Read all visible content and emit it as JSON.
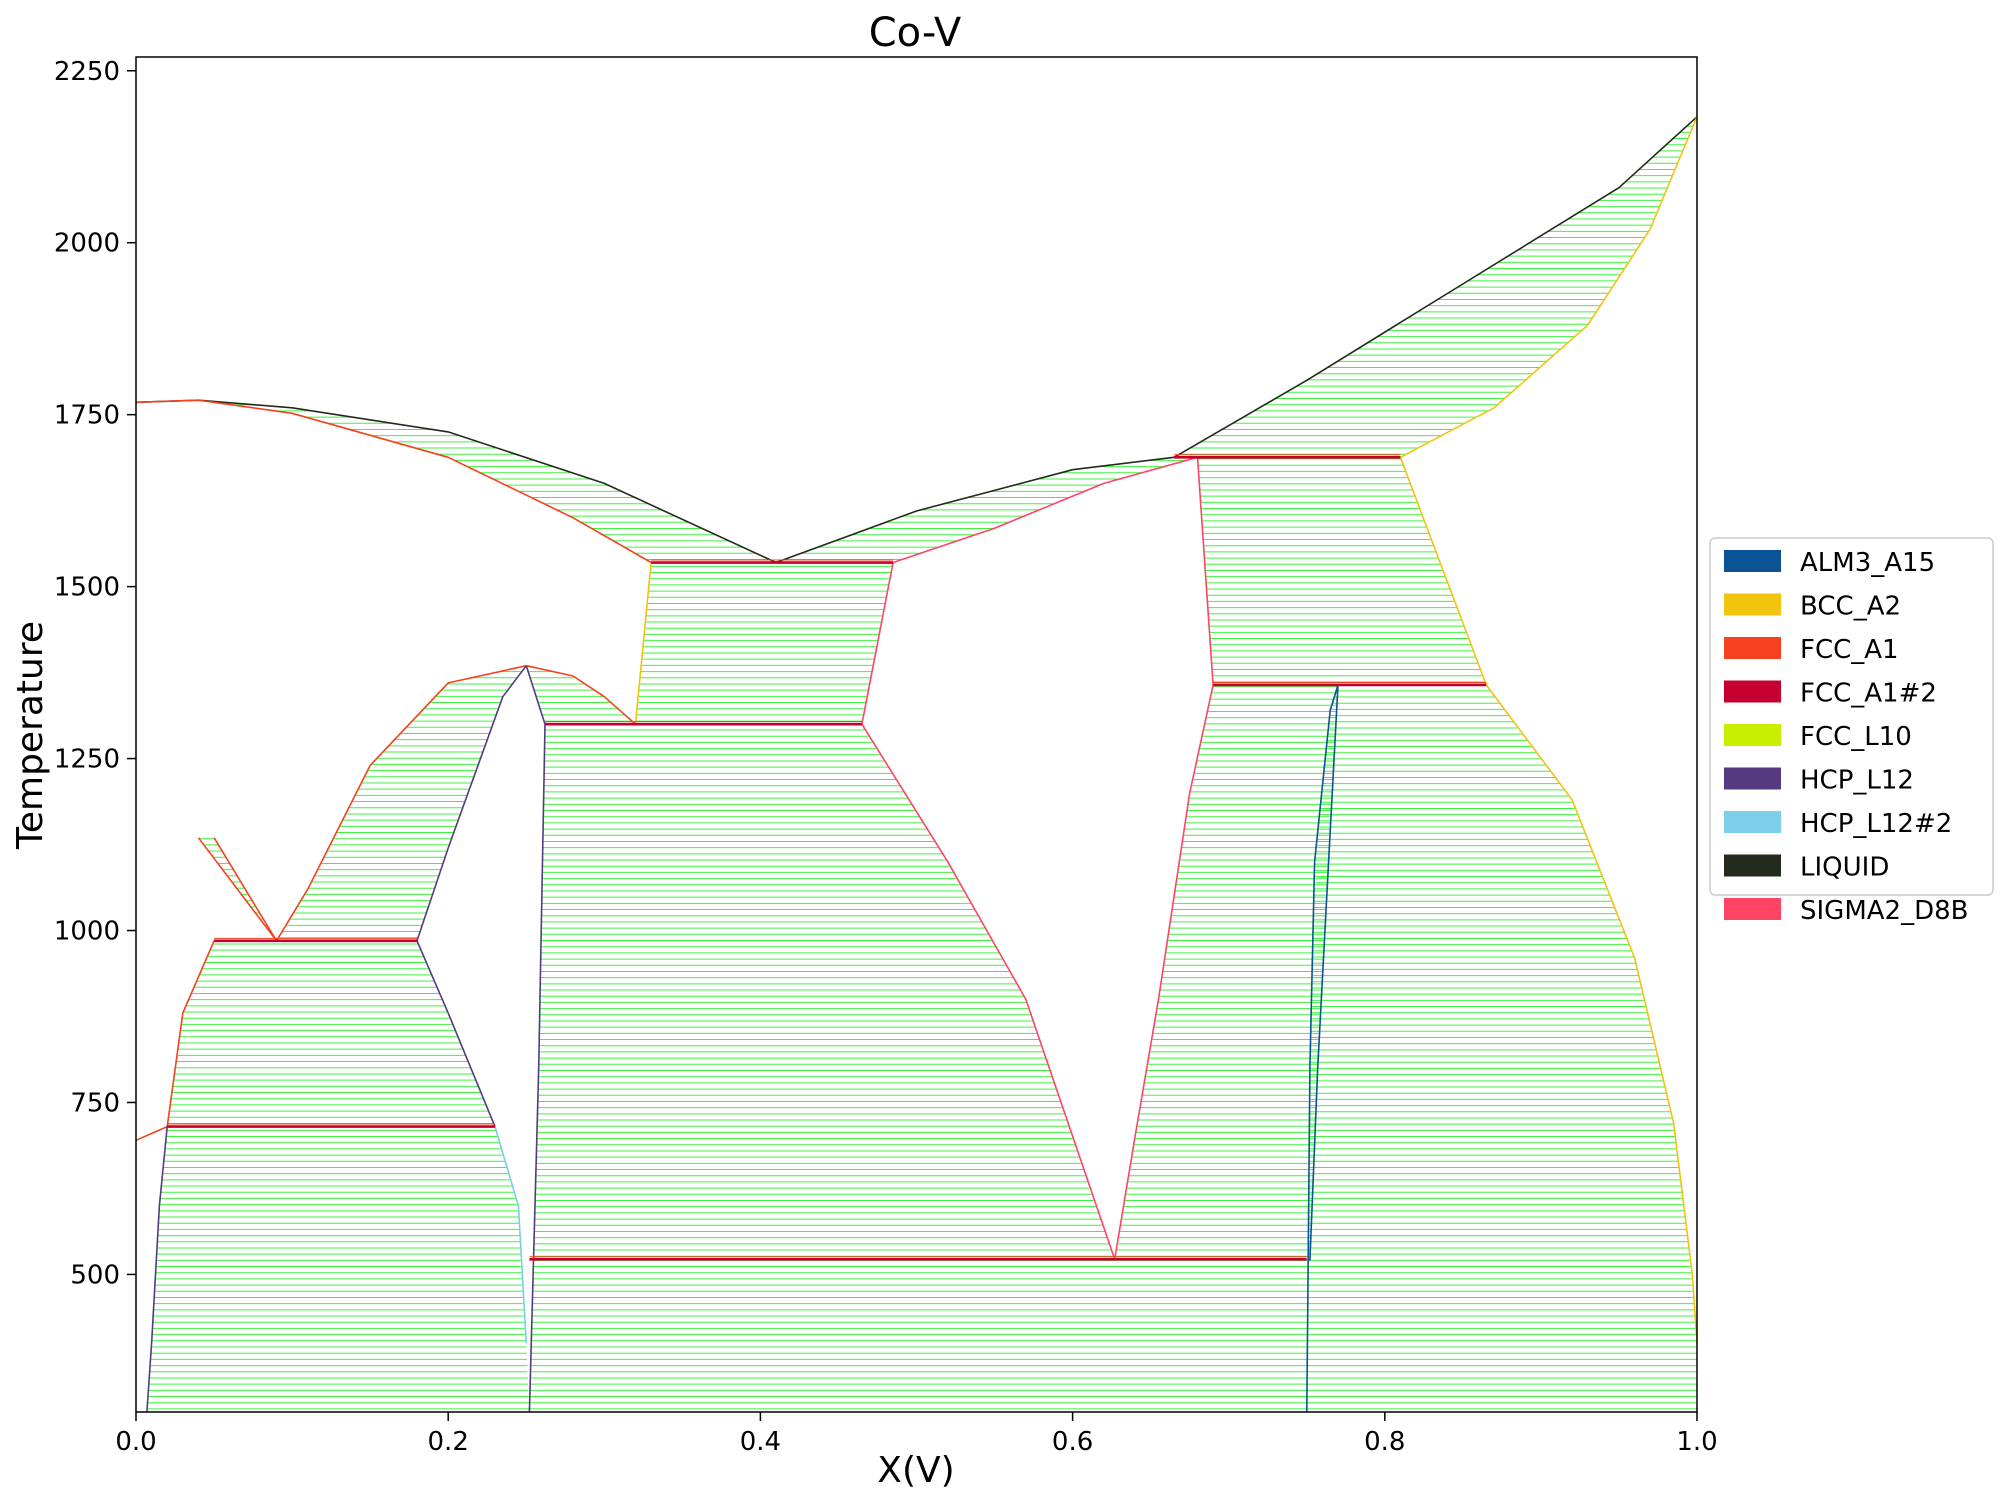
{
  "chart_data": {
    "type": "line",
    "title": "Co-V",
    "xlabel": "X(V)",
    "ylabel": "Temperature",
    "xlim": [
      0,
      1
    ],
    "ylim": [
      300,
      2270
    ],
    "xticks": [
      "0.0",
      "0.2",
      "0.4",
      "0.6",
      "0.8",
      "1.0"
    ],
    "yticks": [
      "500",
      "750",
      "1000",
      "1250",
      "1500",
      "1750",
      "2000",
      "2250"
    ],
    "grid": false,
    "legend_position": "right",
    "tie_line_color": "#00ee00",
    "legend": [
      {
        "name": "ALM3_A15",
        "color": "#0b5394"
      },
      {
        "name": "BCC_A2",
        "color": "#f1c40f"
      },
      {
        "name": "FCC_A1",
        "color": "#f4411e"
      },
      {
        "name": "FCC_A1#2",
        "color": "#c3002f"
      },
      {
        "name": "FCC_L10",
        "color": "#c9ee00"
      },
      {
        "name": "HCP_L12",
        "color": "#553a82"
      },
      {
        "name": "HCP_L12#2",
        "color": "#7ccfe8"
      },
      {
        "name": "LIQUID",
        "color": "#232b1c"
      },
      {
        "name": "SIGMA2_D8B",
        "color": "#ff4466"
      }
    ],
    "series": [
      {
        "phase": "LIQUID",
        "points": [
          [
            0,
            1768
          ],
          [
            0.04,
            1771
          ],
          [
            0.1,
            1760
          ],
          [
            0.2,
            1725
          ],
          [
            0.3,
            1650
          ],
          [
            0.41,
            1535
          ]
        ]
      },
      {
        "phase": "FCC_A1",
        "points": [
          [
            0,
            1768
          ],
          [
            0.04,
            1771
          ],
          [
            0.1,
            1752
          ],
          [
            0.2,
            1688
          ],
          [
            0.28,
            1600
          ],
          [
            0.33,
            1535
          ]
        ]
      },
      {
        "phase": "LIQUID",
        "points": [
          [
            0.41,
            1535
          ],
          [
            0.5,
            1610
          ],
          [
            0.6,
            1670
          ],
          [
            0.665,
            1688
          ]
        ]
      },
      {
        "phase": "SIGMA2_D8B",
        "points": [
          [
            0.485,
            1535
          ],
          [
            0.55,
            1585
          ],
          [
            0.62,
            1650
          ],
          [
            0.68,
            1688
          ]
        ]
      },
      {
        "phase": "LIQUID",
        "points": [
          [
            0.665,
            1688
          ],
          [
            0.75,
            1800
          ],
          [
            0.85,
            1940
          ],
          [
            0.95,
            2080
          ],
          [
            1.0,
            2183
          ]
        ]
      },
      {
        "phase": "BCC_A2",
        "points": [
          [
            0.81,
            1688
          ],
          [
            0.87,
            1760
          ],
          [
            0.93,
            1880
          ],
          [
            0.97,
            2020
          ],
          [
            1.0,
            2183
          ]
        ]
      },
      {
        "phase": "BCC_A2",
        "points": [
          [
            0.81,
            1688
          ],
          [
            0.865,
            1357
          ]
        ]
      },
      {
        "phase": "BCC_A2",
        "points": [
          [
            0.865,
            1357
          ],
          [
            0.92,
            1190
          ],
          [
            0.96,
            960
          ],
          [
            0.985,
            720
          ],
          [
            0.997,
            500
          ],
          [
            1.0,
            400
          ]
        ]
      },
      {
        "phase": "SIGMA2_D8B",
        "points": [
          [
            0.68,
            1688
          ],
          [
            0.69,
            1357
          ]
        ]
      },
      {
        "phase": "SIGMA2_D8B",
        "points": [
          [
            0.69,
            1357
          ],
          [
            0.675,
            1200
          ],
          [
            0.655,
            900
          ],
          [
            0.64,
            700
          ],
          [
            0.627,
            522
          ]
        ]
      },
      {
        "phase": "SIGMA2_D8B",
        "points": [
          [
            0.627,
            522
          ],
          [
            0.57,
            900
          ],
          [
            0.52,
            1100
          ],
          [
            0.465,
            1300
          ]
        ]
      },
      {
        "phase": "SIGMA2_D8B",
        "points": [
          [
            0.485,
            1535
          ],
          [
            0.465,
            1300
          ]
        ]
      },
      {
        "phase": "BCC_A2",
        "points": [
          [
            0.33,
            1535
          ],
          [
            0.32,
            1300
          ]
        ]
      },
      {
        "phase": "ALM3_A15",
        "points": [
          [
            0.75,
            300
          ],
          [
            0.752,
            800
          ],
          [
            0.755,
            1100
          ],
          [
            0.765,
            1320
          ],
          [
            0.77,
            1357
          ]
        ]
      },
      {
        "phase": "ALM3_A15",
        "points": [
          [
            0.77,
            1357
          ],
          [
            0.764,
            1100
          ],
          [
            0.757,
            800
          ],
          [
            0.752,
            520
          ]
        ]
      },
      {
        "phase": "FCC_A1",
        "points": [
          [
            0.25,
            1385
          ],
          [
            0.28,
            1370
          ],
          [
            0.3,
            1340
          ],
          [
            0.32,
            1300
          ]
        ]
      },
      {
        "phase": "FCC_A1",
        "points": [
          [
            0.25,
            1385
          ],
          [
            0.2,
            1360
          ],
          [
            0.15,
            1240
          ],
          [
            0.11,
            1060
          ],
          [
            0.09,
            985
          ]
        ]
      },
      {
        "phase": "HCP_L12",
        "points": [
          [
            0.25,
            1385
          ],
          [
            0.262,
            1300
          ],
          [
            0.258,
            800
          ],
          [
            0.252,
            300
          ]
        ]
      },
      {
        "phase": "HCP_L12",
        "points": [
          [
            0.25,
            1385
          ],
          [
            0.235,
            1340
          ],
          [
            0.2,
            1120
          ],
          [
            0.18,
            985
          ],
          [
            0.2,
            880
          ],
          [
            0.23,
            715
          ]
        ]
      },
      {
        "phase": "HCP_L12#2",
        "points": [
          [
            0.23,
            715
          ],
          [
            0.245,
            600
          ],
          [
            0.25,
            400
          ]
        ]
      },
      {
        "phase": "FCC_A1",
        "points": [
          [
            0.04,
            1135
          ],
          [
            0.09,
            985
          ]
        ]
      },
      {
        "phase": "FCC_A1",
        "points": [
          [
            0.05,
            1135
          ],
          [
            0.09,
            985
          ]
        ]
      },
      {
        "phase": "FCC_A1",
        "points": [
          [
            0.05,
            985
          ],
          [
            0.03,
            880
          ],
          [
            0.02,
            715
          ],
          [
            0,
            695
          ]
        ]
      },
      {
        "phase": "HCP_L12",
        "points": [
          [
            0.02,
            715
          ],
          [
            0.015,
            600
          ],
          [
            0.01,
            400
          ],
          [
            0.007,
            300
          ]
        ]
      }
    ],
    "invariants": [
      {
        "phase": "FCC_A1#2",
        "x": [
          0.33,
          0.485
        ],
        "y": 1535
      },
      {
        "phase": "FCC_A1#2",
        "x": [
          0.262,
          0.465
        ],
        "y": 1300
      },
      {
        "phase": "FCC_A1#2",
        "x": [
          0.05,
          0.18
        ],
        "y": 985
      },
      {
        "phase": "FCC_A1#2",
        "x": [
          0.02,
          0.23
        ],
        "y": 715
      },
      {
        "phase": "FCC_A1#2",
        "x": [
          0.252,
          0.75
        ],
        "y": 522
      },
      {
        "phase": "FCC_A1#2",
        "x": [
          0.69,
          0.865
        ],
        "y": 1357
      },
      {
        "phase": "FCC_A1#2",
        "x": [
          0.665,
          0.81
        ],
        "y": 1688
      }
    ],
    "tie_line_regions": [
      {
        "y": [
          1535,
          1771
        ],
        "left": [
          [
            1535,
            0.33
          ],
          [
            1600,
            0.28
          ],
          [
            1688,
            0.2
          ],
          [
            1752,
            0.1
          ],
          [
            1771,
            0.04
          ]
        ],
        "right": [
          [
            1535,
            0.41
          ],
          [
            1650,
            0.3
          ],
          [
            1725,
            0.2
          ],
          [
            1760,
            0.1
          ],
          [
            1771,
            0.04
          ]
        ]
      },
      {
        "y": [
          1535,
          1688
        ],
        "left": [
          [
            1535,
            0.41
          ],
          [
            1610,
            0.5
          ],
          [
            1670,
            0.6
          ],
          [
            1688,
            0.665
          ]
        ],
        "right": [
          [
            1535,
            0.485
          ],
          [
            1585,
            0.55
          ],
          [
            1650,
            0.62
          ],
          [
            1688,
            0.68
          ]
        ]
      },
      {
        "y": [
          1688,
          2183
        ],
        "left": [
          [
            1688,
            0.665
          ],
          [
            1800,
            0.75
          ],
          [
            1940,
            0.85
          ],
          [
            2080,
            0.95
          ],
          [
            2183,
            1.0
          ]
        ],
        "right": [
          [
            1688,
            0.81
          ],
          [
            1760,
            0.87
          ],
          [
            1880,
            0.93
          ],
          [
            2020,
            0.97
          ],
          [
            2183,
            1.0
          ]
        ]
      },
      {
        "y": [
          1300,
          1535
        ],
        "left": [
          [
            1300,
            0.32
          ],
          [
            1535,
            0.33
          ]
        ],
        "right": [
          [
            1300,
            0.465
          ],
          [
            1535,
            0.485
          ]
        ]
      },
      {
        "y": [
          1357,
          1688
        ],
        "left": [
          [
            1357,
            0.69
          ],
          [
            1688,
            0.68
          ]
        ],
        "right": [
          [
            1357,
            0.865
          ],
          [
            1688,
            0.81
          ]
        ]
      },
      {
        "y": [
          522,
          1357
        ],
        "left": [
          [
            522,
            0.627
          ],
          [
            700,
            0.64
          ],
          [
            900,
            0.655
          ],
          [
            1200,
            0.675
          ],
          [
            1357,
            0.69
          ]
        ],
        "right": [
          [
            522,
            0.752
          ],
          [
            800,
            0.757
          ],
          [
            1100,
            0.764
          ],
          [
            1357,
            0.77
          ]
        ]
      },
      {
        "y": [
          300,
          1357
        ],
        "left": [
          [
            300,
            0.75
          ],
          [
            800,
            0.752
          ],
          [
            1100,
            0.755
          ],
          [
            1320,
            0.765
          ],
          [
            1357,
            0.77
          ]
        ],
        "right": [
          [
            300,
            1.0
          ],
          [
            400,
            1.0
          ],
          [
            500,
            0.997
          ],
          [
            720,
            0.985
          ],
          [
            960,
            0.96
          ],
          [
            1190,
            0.92
          ],
          [
            1357,
            0.865
          ]
        ]
      },
      {
        "y": [
          522,
          1300
        ],
        "left": [
          [
            522,
            0.255
          ],
          [
            800,
            0.258
          ],
          [
            1300,
            0.262
          ]
        ],
        "right": [
          [
            522,
            0.627
          ],
          [
            900,
            0.57
          ],
          [
            1100,
            0.52
          ],
          [
            1300,
            0.465
          ]
        ]
      },
      {
        "y": [
          300,
          522
        ],
        "left": [
          [
            300,
            0.252
          ],
          [
            522,
            0.255
          ]
        ],
        "right": [
          [
            300,
            0.75
          ],
          [
            522,
            0.752
          ]
        ]
      },
      {
        "y": [
          1300,
          1385
        ],
        "left": [
          [
            1300,
            0.262
          ],
          [
            1385,
            0.25
          ]
        ],
        "right": [
          [
            1300,
            0.32
          ],
          [
            1340,
            0.3
          ],
          [
            1370,
            0.28
          ],
          [
            1385,
            0.25
          ]
        ]
      },
      {
        "y": [
          985,
          1385
        ],
        "left": [
          [
            985,
            0.09
          ],
          [
            1060,
            0.11
          ],
          [
            1240,
            0.15
          ],
          [
            1360,
            0.2
          ],
          [
            1385,
            0.25
          ]
        ],
        "right": [
          [
            985,
            0.18
          ],
          [
            1120,
            0.2
          ],
          [
            1340,
            0.235
          ],
          [
            1385,
            0.25
          ]
        ]
      },
      {
        "y": [
          985,
          1135
        ],
        "left": [
          [
            985,
            0.09
          ],
          [
            1135,
            0.04
          ]
        ],
        "right": [
          [
            985,
            0.09
          ],
          [
            1135,
            0.05
          ]
        ]
      },
      {
        "y": [
          715,
          985
        ],
        "left": [
          [
            715,
            0.02
          ],
          [
            880,
            0.03
          ],
          [
            985,
            0.05
          ]
        ],
        "right": [
          [
            715,
            0.23
          ],
          [
            880,
            0.2
          ],
          [
            985,
            0.18
          ]
        ]
      },
      {
        "y": [
          300,
          715
        ],
        "left": [
          [
            300,
            0.007
          ],
          [
            400,
            0.01
          ],
          [
            600,
            0.015
          ],
          [
            715,
            0.02
          ]
        ],
        "right": [
          [
            300,
            0.252
          ],
          [
            400,
            0.25
          ],
          [
            600,
            0.245
          ],
          [
            715,
            0.23
          ]
        ]
      }
    ]
  }
}
